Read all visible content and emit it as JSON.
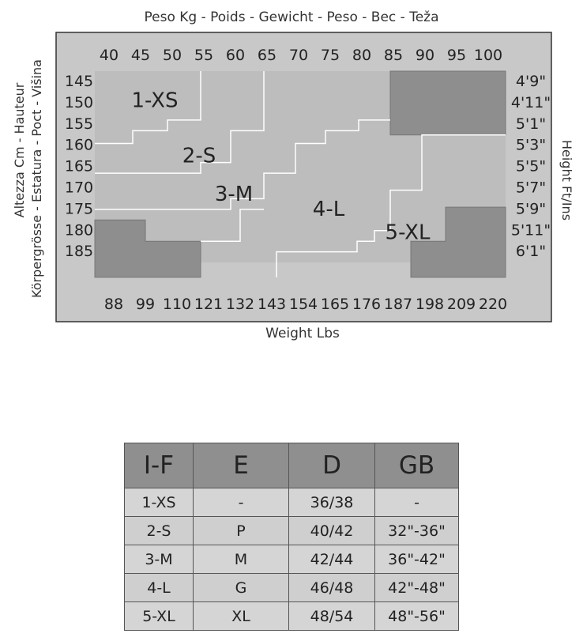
{
  "chart_data": {
    "type": "heatmap",
    "title": "Peso Kg - Poids - Gewicht - Peso - Bec - Teža",
    "xlabel": "Weight Lbs",
    "ylabel_left": "Altezza Cm - Hauteur\nKörpergrösse - Estatura - Poct - Višina",
    "ylabel_right": "Height Ft/Ins",
    "x_kg": [
      40,
      45,
      50,
      55,
      60,
      65,
      70,
      75,
      80,
      85,
      90,
      95,
      100
    ],
    "x_lbs": [
      "88",
      "99",
      "110",
      "121",
      "132",
      "143",
      "154",
      "165",
      "176",
      "187",
      "198",
      "209",
      "220"
    ],
    "y_cm": [
      145,
      150,
      155,
      160,
      165,
      170,
      175,
      180,
      185
    ],
    "y_ft": [
      "4'9\"",
      "4'11\"",
      "5'1\"",
      "5'3\"",
      "5'5\"",
      "5'7\"",
      "5'9\"",
      "5'11\"",
      "6'1\""
    ],
    "zones": [
      {
        "label": "1-XS"
      },
      {
        "label": "2-S"
      },
      {
        "label": "3-M"
      },
      {
        "label": "4-L"
      },
      {
        "label": "5-XL"
      }
    ]
  },
  "size_table": {
    "headers": [
      "I-F",
      "E",
      "D",
      "GB"
    ],
    "rows": [
      [
        "1-XS",
        "-",
        "36/38",
        "-"
      ],
      [
        "2-S",
        "P",
        "40/42",
        "32\"-36\""
      ],
      [
        "3-M",
        "M",
        "42/44",
        "36\"-42\""
      ],
      [
        "4-L",
        "G",
        "46/48",
        "42\"-48\""
      ],
      [
        "5-XL",
        "XL",
        "48/54",
        "48\"-56\""
      ]
    ]
  },
  "colors": {
    "panel_bg": "#c8c8c8",
    "grid_area": "#bdbdbd",
    "not_covered": "#8e8e8e",
    "boundary_line": "#ffffff",
    "header_fill": "#8f8f8f",
    "cell_fill": "#d5d5d5"
  }
}
